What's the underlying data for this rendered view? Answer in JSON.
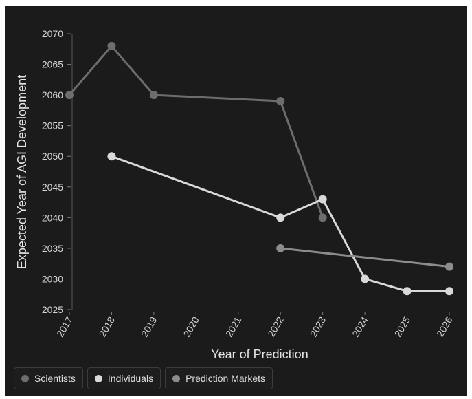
{
  "chart_data": {
    "type": "line",
    "title": "",
    "xlabel": "Year of Prediction",
    "ylabel": "Expected Year of AGI Development",
    "x_ticks": [
      "2017",
      "2018",
      "2019",
      "2020",
      "2021",
      "2022",
      "2023",
      "2024",
      "2025",
      "2026"
    ],
    "y_ticks": [
      "2025",
      "2030",
      "2035",
      "2040",
      "2045",
      "2050",
      "2055",
      "2060",
      "2065",
      "2070"
    ],
    "xlim": [
      2017,
      2026
    ],
    "ylim": [
      2025,
      2070
    ],
    "grid": false,
    "legend_position": "bottom-left",
    "series": [
      {
        "name": "Scientists",
        "color": "#6d6d6d",
        "points": [
          {
            "x": 2017,
            "y": 2060
          },
          {
            "x": 2018,
            "y": 2068
          },
          {
            "x": 2019,
            "y": 2060
          },
          {
            "x": 2022,
            "y": 2059
          },
          {
            "x": 2023,
            "y": 2040
          }
        ]
      },
      {
        "name": "Individuals",
        "color": "#d9d9d9",
        "points": [
          {
            "x": 2018,
            "y": 2050
          },
          {
            "x": 2022,
            "y": 2040
          },
          {
            "x": 2023,
            "y": 2043
          },
          {
            "x": 2024,
            "y": 2030
          },
          {
            "x": 2025,
            "y": 2028
          },
          {
            "x": 2026,
            "y": 2028
          }
        ]
      },
      {
        "name": "Prediction Markets",
        "color": "#8c8c8c",
        "points": [
          {
            "x": 2022,
            "y": 2035
          },
          {
            "x": 2026,
            "y": 2032
          }
        ]
      }
    ]
  }
}
